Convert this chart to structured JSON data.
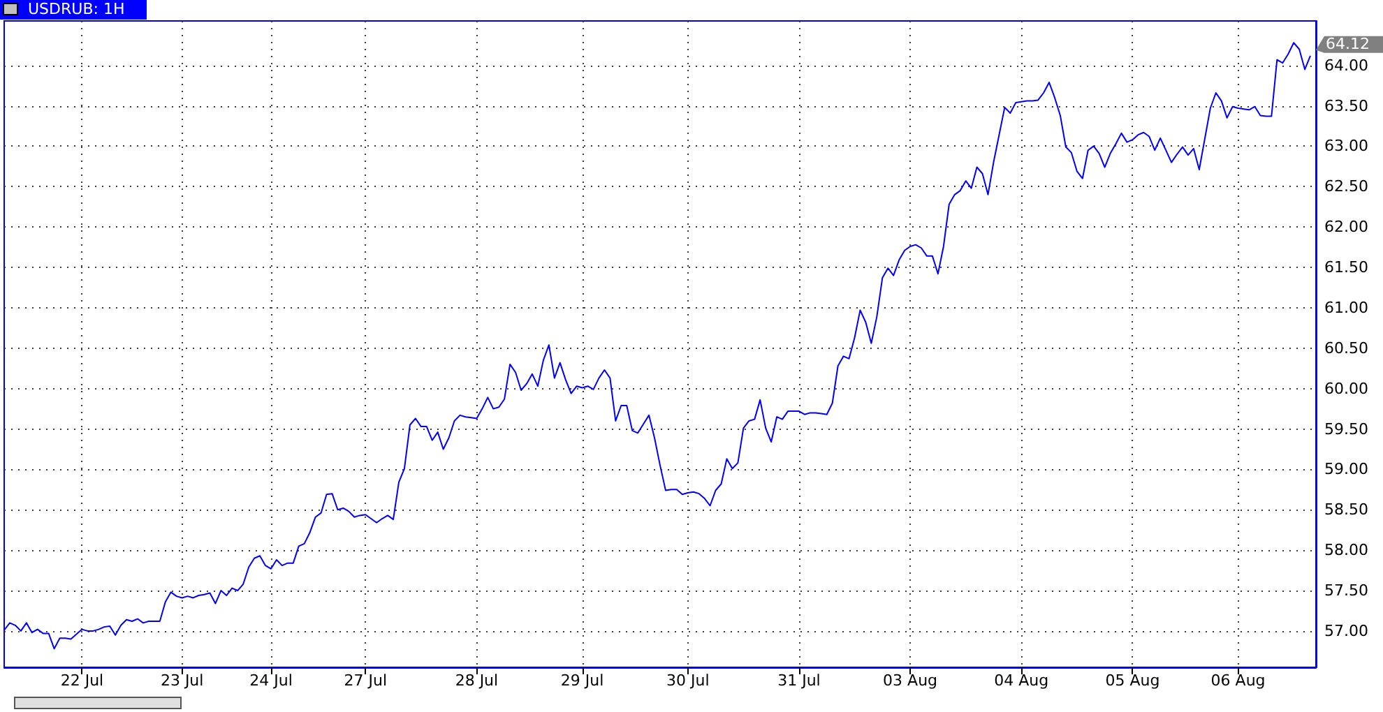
{
  "chart_data": {
    "type": "line",
    "title": "USDRUB: 1H",
    "grid": true,
    "marker": "none",
    "line_style": "solid",
    "categories": [
      null,
      null,
      null,
      null,
      null,
      null,
      null,
      null,
      null,
      null,
      null,
      null,
      null,
      null,
      "22 Jul",
      null,
      null,
      null,
      null,
      null,
      null,
      null,
      null,
      null,
      null,
      null,
      null,
      null,
      null,
      null,
      null,
      null,
      "23 Jul",
      null,
      null,
      null,
      null,
      null,
      null,
      null,
      null,
      null,
      null,
      null,
      null,
      null,
      null,
      null,
      "24 Jul",
      null,
      null,
      null,
      null,
      null,
      null,
      null,
      null,
      null,
      null,
      null,
      null,
      null,
      null,
      null,
      null,
      "27 Jul",
      null,
      null,
      null,
      null,
      null,
      null,
      null,
      null,
      null,
      null,
      null,
      null,
      null,
      null,
      null,
      null,
      null,
      null,
      null,
      "28 Jul",
      null,
      null,
      null,
      null,
      null,
      null,
      null,
      null,
      null,
      null,
      null,
      null,
      null,
      null,
      null,
      null,
      null,
      null,
      "29 Jul",
      null,
      null,
      null,
      null,
      null,
      null,
      null,
      null,
      null,
      null,
      null,
      null,
      null,
      null,
      null,
      null,
      null,
      null,
      "30 Jul",
      null,
      null,
      null,
      null,
      null,
      null,
      null,
      null,
      null,
      null,
      null,
      null,
      null,
      null,
      null,
      null,
      null,
      null,
      null,
      "31 Jul",
      null,
      null,
      null,
      null,
      null,
      null,
      null,
      null,
      null,
      null,
      null,
      null,
      null,
      null,
      null,
      null,
      null,
      null,
      null,
      "03 Aug",
      null,
      null,
      null,
      null,
      null,
      null,
      null,
      null,
      null,
      null,
      null,
      null,
      null,
      null,
      null,
      null,
      null,
      null,
      null,
      "04 Aug",
      null,
      null,
      null,
      null,
      null,
      null,
      null,
      null,
      null,
      null,
      null,
      null,
      null,
      null,
      null,
      null,
      null,
      null,
      null,
      "05 Aug",
      null,
      null,
      null,
      null,
      null,
      null,
      null,
      null,
      null,
      null,
      null,
      null,
      null,
      null,
      null,
      null,
      null,
      null,
      "06 Aug",
      null,
      null,
      null,
      null,
      null,
      null,
      null,
      null,
      null,
      null,
      null,
      null,
      null
    ],
    "ylim": [
      56.55,
      64.55
    ],
    "yticks": [
      {
        "value": 57,
        "label": "57.00"
      },
      {
        "value": 57.5,
        "label": "57.50"
      },
      {
        "value": 58,
        "label": "58.00"
      },
      {
        "value": 58.5,
        "label": "58.50"
      },
      {
        "value": 59,
        "label": "59.00"
      },
      {
        "value": 59.5,
        "label": "59.50"
      },
      {
        "value": 60,
        "label": "60.00"
      },
      {
        "value": 60.5,
        "label": "60.50"
      },
      {
        "value": 61,
        "label": "61.00"
      },
      {
        "value": 61.5,
        "label": "61.50"
      },
      {
        "value": 62,
        "label": "62.00"
      },
      {
        "value": 62.5,
        "label": "62.50"
      },
      {
        "value": 63,
        "label": "63.00"
      },
      {
        "value": 63.5,
        "label": "63.50"
      },
      {
        "value": 64,
        "label": "64.00"
      }
    ],
    "annotations": [
      "64.12"
    ],
    "series": [
      {
        "color": "#0000ff",
        "values": [
          57.01,
          57.1,
          57.07,
          57.0,
          57.1,
          56.98,
          57.02,
          56.97,
          56.97,
          56.78,
          56.91,
          56.91,
          56.9,
          56.96,
          57.02,
          57.0,
          57.0,
          57.02,
          57.05,
          57.06,
          56.95,
          57.07,
          57.14,
          57.12,
          57.15,
          57.1,
          57.12,
          57.12,
          57.12,
          57.36,
          57.48,
          57.43,
          57.41,
          57.43,
          57.41,
          57.44,
          57.45,
          57.47,
          57.34,
          57.5,
          57.44,
          57.53,
          57.5,
          57.58,
          57.79,
          57.9,
          57.93,
          57.81,
          57.77,
          57.88,
          57.81,
          57.84,
          57.84,
          58.05,
          58.08,
          58.22,
          58.41,
          58.46,
          58.69,
          58.7,
          58.5,
          58.52,
          58.48,
          58.41,
          58.43,
          58.44,
          58.39,
          58.34,
          58.39,
          58.43,
          58.38,
          58.84,
          59.01,
          59.55,
          59.63,
          59.53,
          59.53,
          59.36,
          59.46,
          59.25,
          59.39,
          59.6,
          59.67,
          59.65,
          59.64,
          59.63,
          59.75,
          59.89,
          59.75,
          59.77,
          59.87,
          60.3,
          60.2,
          59.98,
          60.06,
          60.18,
          60.03,
          60.35,
          60.54,
          60.13,
          60.32,
          60.11,
          59.94,
          60.03,
          60.01,
          60.03,
          59.99,
          60.13,
          60.23,
          60.13,
          59.6,
          59.79,
          59.79,
          59.48,
          59.45,
          59.56,
          59.67,
          59.39,
          59.05,
          58.74,
          58.75,
          58.75,
          58.69,
          58.71,
          58.72,
          58.7,
          58.64,
          58.55,
          58.74,
          58.82,
          59.13,
          59.01,
          59.08,
          59.51,
          59.6,
          59.62,
          59.86,
          59.51,
          59.34,
          59.65,
          59.62,
          59.72,
          59.72,
          59.72,
          59.68,
          59.7,
          59.7,
          59.69,
          59.68,
          59.82,
          60.28,
          60.4,
          60.37,
          60.63,
          60.97,
          60.82,
          60.56,
          60.89,
          61.37,
          61.49,
          61.4,
          61.59,
          61.71,
          61.76,
          61.78,
          61.74,
          61.64,
          61.64,
          61.42,
          61.76,
          62.28,
          62.4,
          62.45,
          62.57,
          62.48,
          62.74,
          62.66,
          62.4,
          62.8,
          63.14,
          63.48,
          63.41,
          63.54,
          63.55,
          63.56,
          63.56,
          63.57,
          63.66,
          63.79,
          63.6,
          63.38,
          62.99,
          62.92,
          62.69,
          62.6,
          62.95,
          63.0,
          62.91,
          62.74,
          62.91,
          63.03,
          63.16,
          63.05,
          63.08,
          63.14,
          63.17,
          63.12,
          62.95,
          63.1,
          62.95,
          62.8,
          62.9,
          62.99,
          62.89,
          62.97,
          62.71,
          63.09,
          63.47,
          63.66,
          63.56,
          63.35,
          63.49,
          63.47,
          63.46,
          63.45,
          63.49,
          63.38,
          63.37,
          63.37,
          64.07,
          64.03,
          64.14,
          64.28,
          64.2,
          63.95,
          64.12
        ]
      }
    ]
  }
}
